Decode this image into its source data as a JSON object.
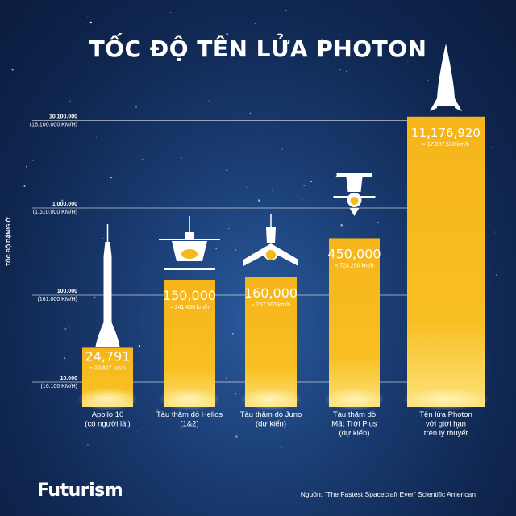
{
  "header": {
    "title": "TỐC ĐỘ TÊN LỬA PHOTON"
  },
  "footer": {
    "brand": "Futurism",
    "source": "Nguồn: “The Fastest Spacecraft Ever” Scientific American"
  },
  "colors": {
    "bar": "#f6b91c",
    "bar_light": "#fdd24a",
    "background": "#12305e"
  },
  "chart_data": {
    "type": "bar",
    "title": "TỐC ĐỘ TÊN LỬA PHOTON",
    "ylabel": "TỐC ĐỘ DẶM/GIỜ",
    "yscale": "log",
    "ylim": [
      10000,
      10100000
    ],
    "yticks": [
      {
        "value": 10000,
        "label": "10.000",
        "sublabel": "(16.100 KM/H)"
      },
      {
        "value": 100000,
        "label": "100.000",
        "sublabel": "(161.000 KM/H)"
      },
      {
        "value": 1000000,
        "label": "1.000.000",
        "sublabel": "(1.610.000 KM/H)"
      },
      {
        "value": 10100000,
        "label": "10.100.000",
        "sublabel": "(16.100.000 KM/H)"
      }
    ],
    "categories": [
      [
        "Apollo 10",
        "(có người lái)"
      ],
      [
        "Tàu thăm dò Helios",
        "(1&2)"
      ],
      [
        "Tàu thăm dò Juno",
        "(dự kiến)"
      ],
      [
        "Tàu thăm dò",
        "Mặt Trời Plus",
        "(dự kiến)"
      ],
      [
        "Tên lửa Photon",
        "với giới hạn",
        "trên lý thuyết"
      ]
    ],
    "values": [
      24791,
      150000,
      160000,
      450000,
      11176920
    ],
    "value_labels": [
      "24,791",
      "150,000",
      "160,000",
      "450,000",
      "11,176,920"
    ],
    "kmh_labels": [
      "≈ 39.897 km/h",
      "≈ 241.400 km/h",
      "≈ 257.500 km/h",
      "≈ 724.200 km/h",
      "≈ 17.987.510 km/h"
    ],
    "icons": [
      "rocket-icon",
      "helios-probe-icon",
      "juno-probe-icon",
      "solar-probe-icon",
      "photon-rocket-icon"
    ],
    "grid": true
  }
}
